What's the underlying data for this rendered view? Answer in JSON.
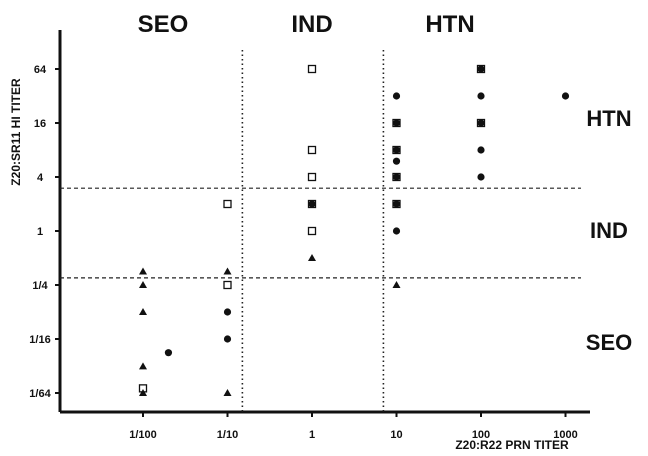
{
  "chart_data": {
    "type": "scatter",
    "xlabel": "Z20:R22 PRN TITER",
    "ylabel": "Z20:SR11 HI TITER",
    "x_scale": "log10",
    "y_scale": "log2",
    "x_ticks": [
      {
        "value": 0.01,
        "label": "1/100"
      },
      {
        "value": 0.1,
        "label": "1/10"
      },
      {
        "value": 1,
        "label": "1"
      },
      {
        "value": 10,
        "label": "10"
      },
      {
        "value": 100,
        "label": "100"
      },
      {
        "value": 1000,
        "label": "1000"
      }
    ],
    "y_ticks": [
      {
        "value": 0.015625,
        "label": "1/64"
      },
      {
        "value": 0.0625,
        "label": "1/16"
      },
      {
        "value": 0.25,
        "label": "1/4"
      },
      {
        "value": 1,
        "label": "1"
      },
      {
        "value": 4,
        "label": "4"
      },
      {
        "value": 16,
        "label": "16"
      },
      {
        "value": 64,
        "label": "64"
      }
    ],
    "top_labels": [
      "SEO",
      "IND",
      "HTN"
    ],
    "right_labels": [
      "HTN",
      "IND",
      "SEO"
    ],
    "thresholds": {
      "x_vertical": [
        0.15,
        7
      ],
      "y_horizontal": [
        3,
        0.3
      ]
    },
    "marker_types": {
      "circle": "filled circle",
      "square": "open square",
      "triangle": "filled triangle"
    },
    "points": [
      {
        "x": 0.01,
        "y": 0.354,
        "m": "triangle"
      },
      {
        "x": 0.01,
        "y": 0.25,
        "m": "triangle"
      },
      {
        "x": 0.01,
        "y": 0.125,
        "m": "triangle"
      },
      {
        "x": 0.01,
        "y": 0.031,
        "m": "triangle"
      },
      {
        "x": 0.01,
        "y": 0.0176,
        "m": "square"
      },
      {
        "x": 0.01,
        "y": 0.0156,
        "m": "triangle"
      },
      {
        "x": 0.02,
        "y": 0.044,
        "m": "circle"
      },
      {
        "x": 0.1,
        "y": 0.354,
        "m": "triangle"
      },
      {
        "x": 0.1,
        "y": 0.25,
        "m": "triangle"
      },
      {
        "x": 0.1,
        "y": 0.25,
        "m": "square"
      },
      {
        "x": 0.1,
        "y": 0.125,
        "m": "circle"
      },
      {
        "x": 0.1,
        "y": 0.0625,
        "m": "circle"
      },
      {
        "x": 0.1,
        "y": 0.0156,
        "m": "triangle"
      },
      {
        "x": 0.1,
        "y": 2,
        "m": "square"
      },
      {
        "x": 1,
        "y": 64,
        "m": "square"
      },
      {
        "x": 1,
        "y": 8,
        "m": "square"
      },
      {
        "x": 1,
        "y": 4,
        "m": "square"
      },
      {
        "x": 1,
        "y": 2,
        "m": "square"
      },
      {
        "x": 1,
        "y": 2,
        "m": "circle"
      },
      {
        "x": 1,
        "y": 1,
        "m": "square"
      },
      {
        "x": 1,
        "y": 0.5,
        "m": "triangle"
      },
      {
        "x": 10,
        "y": 32,
        "m": "circle"
      },
      {
        "x": 10,
        "y": 16,
        "m": "square"
      },
      {
        "x": 10,
        "y": 16,
        "m": "circle"
      },
      {
        "x": 10,
        "y": 8,
        "m": "square"
      },
      {
        "x": 10,
        "y": 8,
        "m": "circle"
      },
      {
        "x": 10,
        "y": 6,
        "m": "circle"
      },
      {
        "x": 10,
        "y": 4,
        "m": "square"
      },
      {
        "x": 10,
        "y": 4,
        "m": "circle"
      },
      {
        "x": 10,
        "y": 2,
        "m": "square"
      },
      {
        "x": 10,
        "y": 2,
        "m": "circle"
      },
      {
        "x": 10,
        "y": 1,
        "m": "circle"
      },
      {
        "x": 10,
        "y": 0.25,
        "m": "triangle"
      },
      {
        "x": 100,
        "y": 64,
        "m": "square"
      },
      {
        "x": 100,
        "y": 64,
        "m": "circle"
      },
      {
        "x": 100,
        "y": 32,
        "m": "circle"
      },
      {
        "x": 100,
        "y": 16,
        "m": "square"
      },
      {
        "x": 100,
        "y": 16,
        "m": "circle"
      },
      {
        "x": 100,
        "y": 8,
        "m": "circle"
      },
      {
        "x": 100,
        "y": 4,
        "m": "circle"
      },
      {
        "x": 1000,
        "y": 32,
        "m": "circle"
      }
    ]
  }
}
